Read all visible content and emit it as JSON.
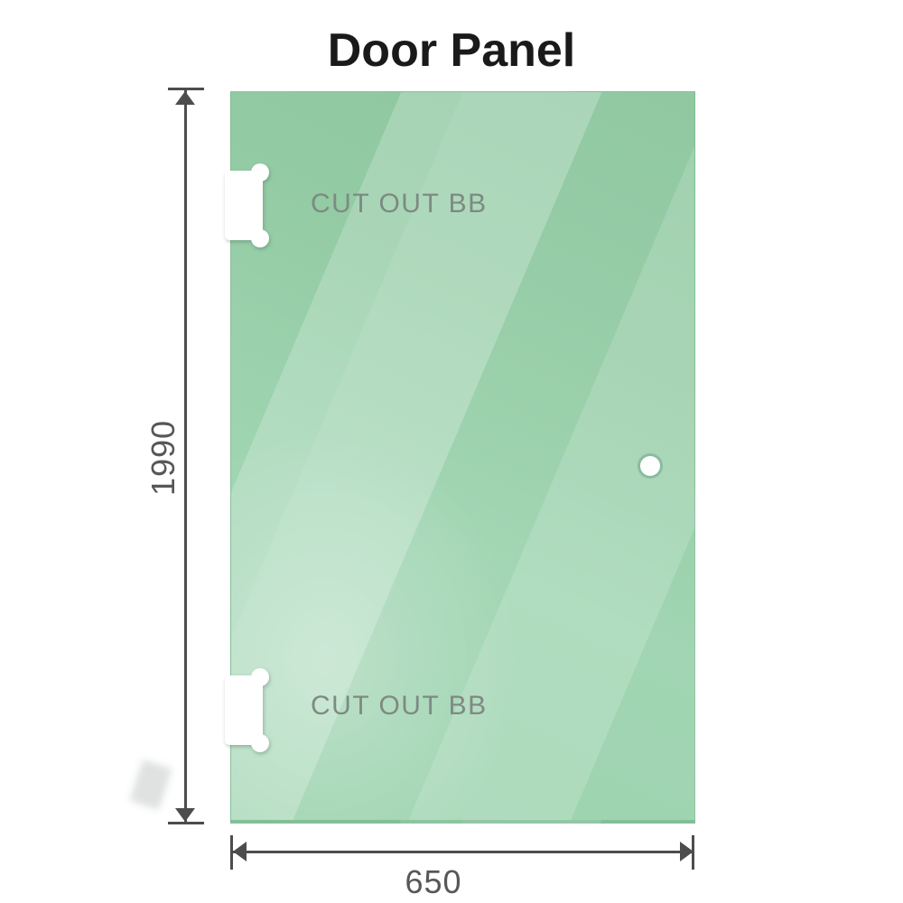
{
  "title": "Door Panel",
  "panel": {
    "cutouts": [
      {
        "label": "CUT OUT BB"
      },
      {
        "label": "CUT OUT BB"
      }
    ],
    "glass_colors": {
      "base": "#9ad2ae",
      "dark": "#8cc79e",
      "light": "#c6e9d2",
      "edge": "#6fae88"
    }
  },
  "dimensions": {
    "height": {
      "value": "1990"
    },
    "width": {
      "value": "650"
    }
  },
  "colors": {
    "background": "#ffffff",
    "title_text": "#1a1a1a",
    "cutout_label_text": "#7d8a82",
    "dimension_line": "#4d4d4d",
    "dimension_text": "#565758"
  },
  "icons": {
    "arrow_up": "triangle-up",
    "arrow_down": "triangle-down",
    "arrow_left": "triangle-left",
    "arrow_right": "triangle-right"
  }
}
